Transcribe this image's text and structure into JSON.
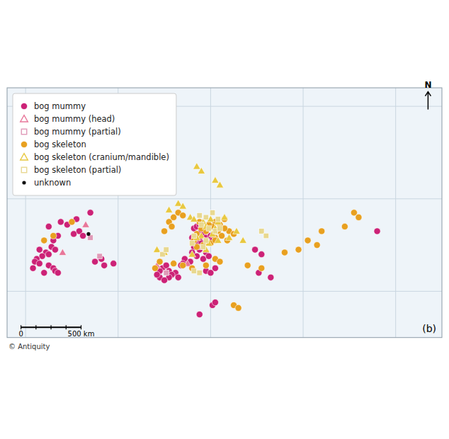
{
  "chart_data": {
    "type": "scatter",
    "xlim": [
      -12,
      35
    ],
    "ylim": [
      45,
      72
    ],
    "xticks": [
      -10,
      0,
      10,
      20,
      30
    ],
    "yticks": [
      50,
      60,
      70
    ],
    "grid": true,
    "tick_labels": false,
    "legend": "upper left",
    "series": [
      {
        "name": "bog mummy",
        "color": "#cc2277",
        "marker": "circle",
        "x": [
          -3.0,
          -4.5,
          -5.5,
          -6.2,
          -7.5,
          -4.2,
          -3.8,
          -4.8,
          -6.5,
          -7.0,
          -8.5,
          -7.8,
          -8.2,
          -8.8,
          -9.0,
          -8.5,
          -7.5,
          -7.0,
          -6.8,
          -6.5,
          -8.0,
          -9.2,
          -7.2,
          -6.8,
          -7.5,
          -1.8,
          -2.5,
          -1.5,
          -0.5,
          8.2,
          8.5,
          8.8,
          9.0,
          9.2,
          8.0,
          8.8,
          9.5,
          10.0,
          10.2,
          8.5,
          9.0,
          8.2,
          8.8,
          9.5,
          8.0,
          8.5,
          9.2,
          9.8,
          4.8,
          5.2,
          5.5,
          4.5,
          6.2,
          5.8,
          6.5,
          5.5,
          4.5,
          5.0,
          4.2,
          7.2,
          7.8,
          7.0,
          6.8,
          9.5,
          10.5,
          10.0,
          15.2,
          16.5,
          14.8,
          15.5,
          28.0,
          10.2,
          10.5,
          8.8
        ],
        "y": [
          58.5,
          57.8,
          57.2,
          57.5,
          57.0,
          56.5,
          56.0,
          56.2,
          56.0,
          55.5,
          54.5,
          54.2,
          53.8,
          53.5,
          53.2,
          53.0,
          52.8,
          52.5,
          52.2,
          52.0,
          52.0,
          52.5,
          54.8,
          54.5,
          54.0,
          53.5,
          53.2,
          52.8,
          53.0,
          56.8,
          57.0,
          57.2,
          56.5,
          56.2,
          55.8,
          55.5,
          55.8,
          56.0,
          55.5,
          55.0,
          55.2,
          54.8,
          54.5,
          54.2,
          54.2,
          53.8,
          53.5,
          53.8,
          52.5,
          52.8,
          52.2,
          52.2,
          52.0,
          51.8,
          51.5,
          51.5,
          51.5,
          51.2,
          51.8,
          53.5,
          53.2,
          53.0,
          52.8,
          52.2,
          52.5,
          52.0,
          52.0,
          51.5,
          54.5,
          54.0,
          56.5,
          48.5,
          48.8,
          47.5
        ]
      },
      {
        "name": "bog mummy (head)",
        "color": "#e8779a",
        "marker": "triangle",
        "x": [
          -3.5,
          -6.0,
          7.5,
          4.2
        ],
        "y": [
          57.2,
          54.2,
          53.0,
          52.8
        ]
      },
      {
        "name": "bog mummy (partial)",
        "color": "#e09ab8",
        "marker": "square",
        "x": [
          -2.0,
          -3.0,
          5.2,
          9.0
        ],
        "y": [
          53.8,
          55.8,
          52.0,
          54.8
        ]
      },
      {
        "name": "bog skeleton",
        "color": "#e8a020",
        "marker": "circle",
        "x": [
          -5.0,
          -7.0,
          -8.0,
          5.5,
          6.0,
          6.5,
          7.0,
          5.8,
          5.0,
          10.5,
          11.0,
          11.5,
          10.8,
          11.2,
          10.5,
          9.5,
          10.2,
          8.8,
          12.0,
          11.8,
          8.5,
          9.0,
          9.8,
          10.0,
          10.5,
          9.2,
          8.2,
          8.5,
          11.5,
          12.5,
          4.5,
          4.0,
          6.0,
          7.0,
          8.0,
          9.5,
          10.5,
          11.0,
          15.5,
          14.0,
          18.0,
          19.5,
          21.5,
          20.5,
          24.5,
          22.0,
          25.5,
          26.0,
          12.5,
          13.0
        ],
        "y": [
          57.5,
          56.0,
          55.5,
          57.5,
          58.0,
          58.5,
          58.2,
          57.0,
          56.5,
          57.5,
          57.2,
          57.8,
          56.5,
          56.0,
          55.8,
          56.5,
          57.0,
          57.5,
          56.5,
          55.5,
          56.2,
          56.8,
          57.2,
          55.2,
          55.5,
          55.0,
          55.5,
          54.8,
          56.8,
          56.2,
          53.2,
          52.5,
          53.0,
          52.8,
          52.5,
          52.8,
          53.5,
          53.2,
          52.5,
          52.8,
          54.2,
          54.5,
          55.0,
          55.5,
          57.0,
          56.5,
          58.5,
          58.0,
          48.5,
          48.2
        ]
      },
      {
        "name": "bog skeleton (cranium/mandible)",
        "color": "#e8c840",
        "marker": "triangle",
        "x": [
          7.8,
          8.2,
          9.2,
          9.5,
          10.5,
          10.8,
          10.0,
          11.5,
          9.0,
          10.2,
          8.5,
          9.8,
          9.5,
          8.0,
          10.8,
          12.0,
          13.5,
          12.8,
          8.5,
          9.0,
          6.5,
          7.0,
          10.5,
          11.0,
          5.5,
          4.2,
          5.0
        ],
        "y": [
          58.0,
          57.8,
          57.5,
          57.0,
          56.8,
          57.5,
          57.8,
          58.0,
          56.0,
          56.2,
          55.8,
          55.2,
          54.5,
          54.0,
          55.5,
          55.8,
          55.5,
          56.5,
          63.5,
          63.0,
          59.5,
          59.2,
          62.0,
          61.5,
          58.8,
          54.5,
          54.2
        ]
      },
      {
        "name": "bog skeleton (partial)",
        "color": "#e8d890",
        "marker": "square",
        "x": [
          8.8,
          9.5,
          10.2,
          10.8,
          9.0,
          9.8,
          10.5,
          11.0,
          8.2,
          9.5,
          8.0,
          9.2,
          15.5,
          16.0,
          4.8,
          5.2,
          8.2,
          8.8
        ],
        "y": [
          58.2,
          58.0,
          58.5,
          57.8,
          57.2,
          56.8,
          56.5,
          56.8,
          56.0,
          55.5,
          55.2,
          54.8,
          56.5,
          56.0,
          54.0,
          54.5,
          52.2,
          52.0
        ]
      },
      {
        "name": "unknown",
        "color": "#111111",
        "marker": "point",
        "x": [
          -3.2
        ],
        "y": [
          56.2
        ]
      }
    ],
    "annotations": [
      {
        "text": "0",
        "x": -10.5,
        "y": 45.8
      },
      {
        "text": "500 km",
        "x": -4.0,
        "y": 45.8
      },
      {
        "text": "N",
        "x": 33.5,
        "y": 71.8
      },
      {
        "text": "(b)"
      },
      {
        "text": "© Antiquity"
      }
    ]
  }
}
